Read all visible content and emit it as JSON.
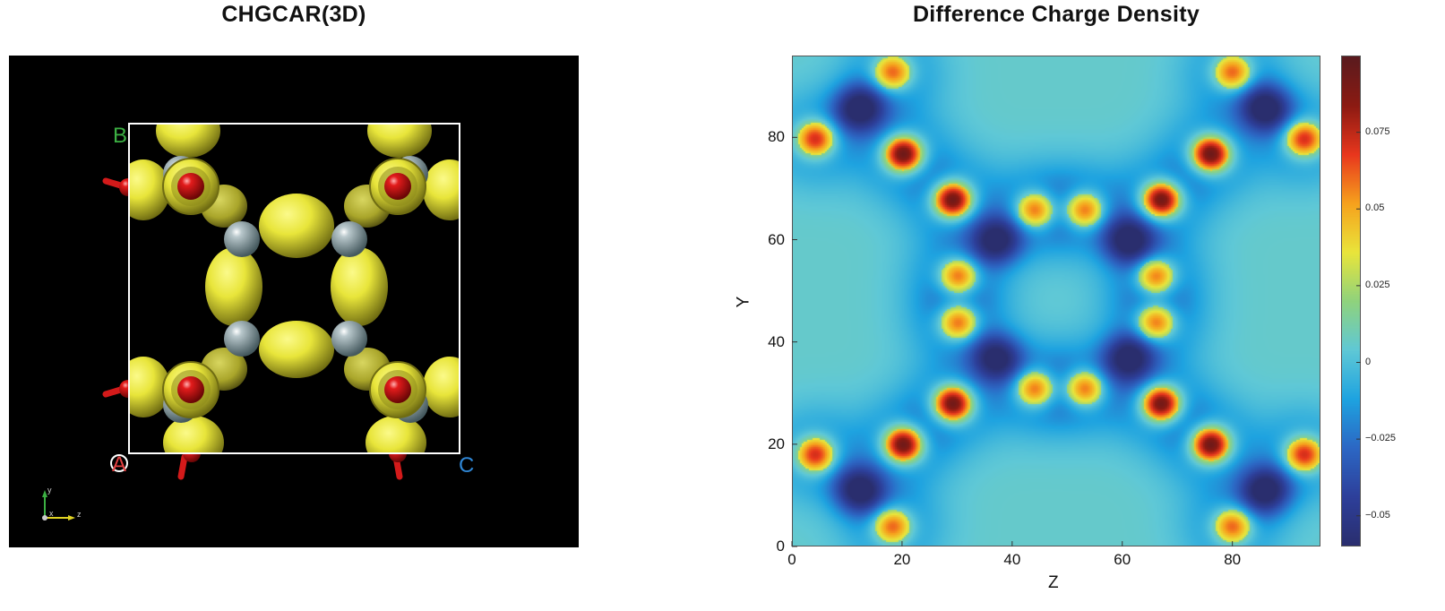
{
  "left_panel": {
    "title": "CHGCAR(3D)",
    "labels": {
      "b": "B",
      "c": "C",
      "a": "A"
    },
    "triad": {
      "y": "y",
      "x": "x",
      "z": "z"
    },
    "colors": {
      "background": "#000000",
      "isosurface": "#e8e53a",
      "oxygen": "#e21b1b",
      "metal": "#8fa3a8",
      "cell_edge": "#ffffff",
      "label_b": "#3cb043",
      "label_c": "#2f87d6",
      "label_a": "#e04040"
    }
  },
  "chart_data": {
    "type": "heatmap",
    "title": "Difference Charge Density",
    "xlabel": "Z",
    "ylabel": "Y",
    "xlim": [
      0,
      96
    ],
    "ylim": [
      0,
      96
    ],
    "xticks": [
      0,
      20,
      40,
      60,
      80
    ],
    "yticks": [
      0,
      20,
      40,
      60,
      80
    ],
    "colorbar": {
      "range": [
        -0.06,
        0.1
      ],
      "ticks": [
        {
          "value": 0.075,
          "label": "0.075"
        },
        {
          "value": 0.05,
          "label": "0.05"
        },
        {
          "value": 0.025,
          "label": "0.025"
        },
        {
          "value": 0,
          "label": "0"
        },
        {
          "value": -0.025,
          "label": "−0.025"
        },
        {
          "value": -0.05,
          "label": "−0.05"
        }
      ]
    },
    "maxima": [
      {
        "z": 20,
        "y": 77,
        "v": 0.1
      },
      {
        "z": 29,
        "y": 68,
        "v": 0.1
      },
      {
        "z": 76,
        "y": 77,
        "v": 0.1
      },
      {
        "z": 67,
        "y": 68,
        "v": 0.1
      },
      {
        "z": 20,
        "y": 20,
        "v": 0.1
      },
      {
        "z": 29,
        "y": 28,
        "v": 0.1
      },
      {
        "z": 76,
        "y": 20,
        "v": 0.1
      },
      {
        "z": 67,
        "y": 28,
        "v": 0.1
      },
      {
        "z": 44,
        "y": 66,
        "v": 0.07
      },
      {
        "z": 53,
        "y": 66,
        "v": 0.07
      },
      {
        "z": 44,
        "y": 31,
        "v": 0.07
      },
      {
        "z": 53,
        "y": 31,
        "v": 0.07
      },
      {
        "z": 30,
        "y": 53,
        "v": 0.07
      },
      {
        "z": 30,
        "y": 44,
        "v": 0.07
      },
      {
        "z": 66,
        "y": 53,
        "v": 0.07
      },
      {
        "z": 66,
        "y": 44,
        "v": 0.07
      },
      {
        "z": 4,
        "y": 80,
        "v": 0.075
      },
      {
        "z": 93,
        "y": 80,
        "v": 0.075
      },
      {
        "z": 4,
        "y": 18,
        "v": 0.075
      },
      {
        "z": 93,
        "y": 18,
        "v": 0.075
      },
      {
        "z": 18,
        "y": 93,
        "v": 0.065
      },
      {
        "z": 80,
        "y": 93,
        "v": 0.065
      },
      {
        "z": 18,
        "y": 4,
        "v": 0.065
      },
      {
        "z": 80,
        "y": 4,
        "v": 0.065
      }
    ],
    "minima": [
      {
        "z": 12,
        "y": 86,
        "v": -0.06
      },
      {
        "z": 86,
        "y": 86,
        "v": -0.06
      },
      {
        "z": 12,
        "y": 11,
        "v": -0.06
      },
      {
        "z": 86,
        "y": 11,
        "v": -0.06
      },
      {
        "z": 37,
        "y": 60,
        "v": -0.055
      },
      {
        "z": 61,
        "y": 60,
        "v": -0.055
      },
      {
        "z": 37,
        "y": 37,
        "v": -0.055
      },
      {
        "z": 61,
        "y": 37,
        "v": -0.055
      }
    ],
    "colors": {
      "background": "#66c6d6",
      "colormap": [
        "#2a2e6e",
        "#2d3f9a",
        "#2c67c4",
        "#1ea3e0",
        "#5fc8d6",
        "#8fd27d",
        "#e9e53b",
        "#f6a21d",
        "#e8371d",
        "#8c1a12",
        "#5a1a1e"
      ]
    }
  }
}
